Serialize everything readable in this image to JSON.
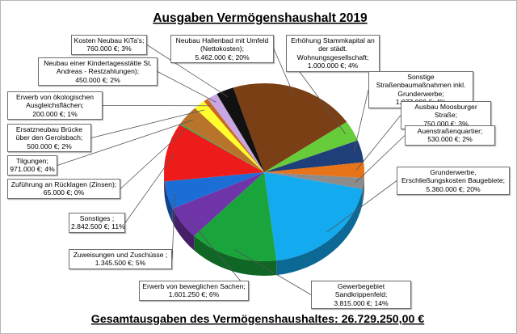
{
  "chart_data": {
    "type": "pie",
    "title": "Ausgaben Vermögenshaushalt 2019",
    "footer": "Gesamtausgaben des Vermögenshaushaltes: 26.729.250,00 €",
    "slices": [
      {
        "name": "Neubau Hallenbad mit Umfeld (Nettokosten);",
        "value": 5462000,
        "value_text": "5.462.000 €; 20%",
        "color": "#7b3f15"
      },
      {
        "name": "Erhöhung Stammkapital an der städt. Wohnungsgesellschaft;",
        "value": 1000000,
        "value_text": "1.000.000 €; 4%",
        "color": "#66cc3a"
      },
      {
        "name": "Sonstige Straßenbaumaßnahmen inkl. Grunderwerbe;",
        "value": 1077000,
        "value_text": "1.077.000 €; 4%",
        "color": "#1f3f7a"
      },
      {
        "name": "Ausbau Moosburger Straße;",
        "value": 750000,
        "value_text": "750.000 €; 3%",
        "color": "#e8741a"
      },
      {
        "name": "Auenstraßenquartier;",
        "value": 530000,
        "value_text": "530.000 €; 2%",
        "color": "#8c8c8c"
      },
      {
        "name": "Grunderwerbe, Erschließungskosten Baugebiete;",
        "value": 5360000,
        "value_text": "5.360.000 €; 20%",
        "color": "#13aaf0"
      },
      {
        "name": "Gewerbegebiet Sandkrippenfeld;",
        "value": 3815000,
        "value_text": "3.815.000 €; 14%",
        "color": "#1aa53c"
      },
      {
        "name": "Erwerb von beweglichen Sachen;",
        "value": 1601250,
        "value_text": "1.601.250 €; 6%",
        "color": "#6f34a8"
      },
      {
        "name": "Zuweisungen und Zuschüsse ;",
        "value": 1345500,
        "value_text": "1.345.500 €; 5%",
        "color": "#1b6ed6"
      },
      {
        "name": "Sonstiges ;",
        "value": 2842500,
        "value_text": "2.842.500 €; 11%",
        "color": "#ee1b1b"
      },
      {
        "name": "Zuführung an Rücklagen (Zinsen);",
        "value": 65000,
        "value_text": "65.000 €; 0%",
        "color": "#2fa84a"
      },
      {
        "name": "Tilgungen;",
        "value": 971000,
        "value_text": "971.000 €; 4%",
        "color": "#b9742b"
      },
      {
        "name": "Ersatzneubau Brücke über den Gerolsbach;",
        "value": 500000,
        "value_text": "500.000 €; 2%",
        "color": "#ffff2e"
      },
      {
        "name": "Erwerb von ökologischen Ausgleichsflächen;",
        "value": 200000,
        "value_text": "200.000 €; 1%",
        "color": "#c8691f"
      },
      {
        "name": "Neubau einer Kindertagesstätte St. Andreas - Restzahlungen);",
        "value": 450000,
        "value_text": "450.000 €; 2%",
        "color": "#c8a6e3"
      },
      {
        "name": "Kosten Neubau KiTa's;",
        "value": 760000,
        "value_text": "760.000 €; 3%",
        "color": "#111111"
      }
    ],
    "legend": "none; data labels in boxes with leader lines"
  }
}
